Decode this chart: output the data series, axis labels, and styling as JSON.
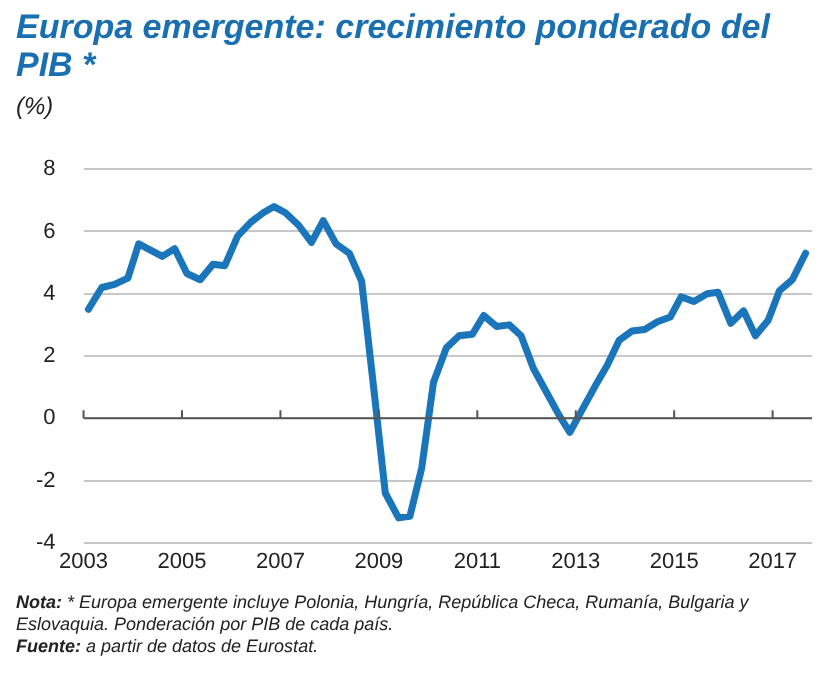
{
  "chart_data": {
    "type": "line",
    "title": "Europa emergente: crecimiento ponderado del PIB *",
    "ylabel": "(%)",
    "x": [
      2003.1,
      2003.37,
      2003.63,
      2003.9,
      2004.12,
      2004.6,
      2004.85,
      2005.1,
      2005.37,
      2005.63,
      2005.87,
      2006.13,
      2006.4,
      2006.65,
      2006.87,
      2007.1,
      2007.37,
      2007.63,
      2007.87,
      2008.13,
      2008.4,
      2008.65,
      2008.9,
      2009.13,
      2009.4,
      2009.63,
      2009.87,
      2010.11,
      2010.37,
      2010.63,
      2010.9,
      2011.13,
      2011.39,
      2011.65,
      2011.89,
      2012.14,
      2012.4,
      2012.66,
      2012.88,
      2013.14,
      2013.4,
      2013.64,
      2013.88,
      2014.14,
      2014.4,
      2014.66,
      2014.92,
      2015.14,
      2015.4,
      2015.67,
      2015.89,
      2016.15,
      2016.41,
      2016.65,
      2016.91,
      2017.14,
      2017.4,
      2017.67
    ],
    "series": [
      {
        "color": "#1a75bb",
        "values": [
          3.5,
          4.2,
          4.3,
          4.5,
          5.6,
          5.2,
          5.45,
          4.65,
          4.45,
          4.95,
          4.9,
          5.85,
          6.3,
          6.6,
          6.8,
          6.6,
          6.2,
          5.65,
          6.35,
          5.6,
          5.3,
          4.4,
          0.9,
          -2.4,
          -3.2,
          -3.15,
          -1.6,
          1.16,
          2.26,
          2.65,
          2.7,
          3.3,
          2.95,
          3.0,
          2.65,
          1.6,
          0.85,
          0.1,
          -0.45,
          0.3,
          1.05,
          1.7,
          2.5,
          2.8,
          2.85,
          3.1,
          3.25,
          3.9,
          3.75,
          4.0,
          4.05,
          3.05,
          3.45,
          2.65,
          3.15,
          4.1,
          4.45,
          5.3
        ]
      }
    ],
    "xlim": [
      2003,
      2017.8
    ],
    "xticks": [
      2003,
      2005,
      2007,
      2009,
      2011,
      2013,
      2015,
      2017
    ],
    "ylim": [
      -4,
      8
    ],
    "yticks": [
      -4,
      -2,
      0,
      2,
      4,
      6,
      8
    ],
    "grid": "y",
    "legend": false,
    "marker": "none",
    "line_style": "solid",
    "annotations": [
      "Nota: * Europa emergente incluye Polonia, Hungría, República Checa, Rumanía, Bulgaria y Eslovaquia. Ponderación por PIB de cada país.",
      "Fuente: a partir de datos de Eurostat."
    ]
  }
}
